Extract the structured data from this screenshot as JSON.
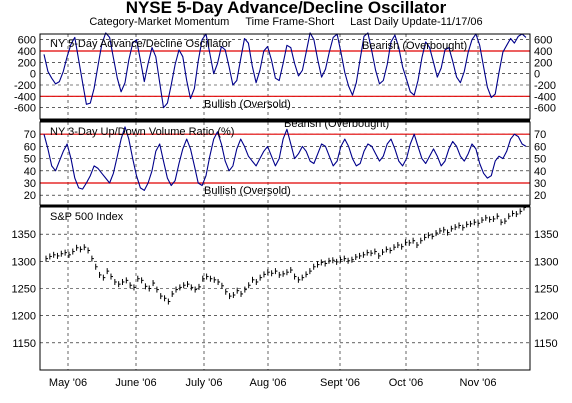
{
  "header": {
    "title": "NYSE 5-Day Advance/Decline Oscillator",
    "category": "Category-Market Momentum",
    "time_frame": "Time Frame-Short",
    "last_update": "Last Daily Update-11/17/06"
  },
  "colors": {
    "line": "#00008b",
    "reference": "#e00000",
    "grid": "#000000",
    "bar": "#000000"
  },
  "chart_data": [
    {
      "type": "line",
      "title": "NY 5-Day Advance/Decline Oscillator",
      "ylim": [
        -800,
        700
      ],
      "yticks": [
        600,
        400,
        200,
        0,
        -200,
        -400,
        -600
      ],
      "ytick_labels": [
        "600",
        "400",
        "200",
        "0",
        "-200",
        "-400",
        "-600"
      ],
      "reference_lines": [
        {
          "value": 400,
          "label": "Bearish (Overbought)"
        },
        {
          "value": -400,
          "label": "Bullish (Oversold)"
        }
      ],
      "series": [
        {
          "values": [
            340,
            40,
            -80,
            -180,
            -140,
            40,
            300,
            520,
            640,
            240,
            -160,
            -540,
            -520,
            -260,
            140,
            520,
            720,
            640,
            280,
            -80,
            -320,
            -160,
            240,
            540,
            600,
            240,
            -140,
            180,
            460,
            300,
            -160,
            -600,
            -520,
            -200,
            160,
            420,
            300,
            -120,
            -440,
            -260,
            220,
            600,
            700,
            360,
            0,
            180,
            480,
            420,
            120,
            -200,
            -120,
            260,
            620,
            540,
            140,
            -160,
            60,
            400,
            480,
            240,
            -80,
            -120,
            180,
            500,
            460,
            180,
            -40,
            60,
            380,
            720,
            600,
            240,
            -60,
            80,
            380,
            640,
            700,
            380,
            20,
            -220,
            -380,
            -160,
            260,
            660,
            720,
            400,
            60,
            -180,
            -120,
            160,
            560,
            680,
            460,
            120,
            -100,
            -320,
            -380,
            -120,
            280,
            560,
            460,
            200,
            -60,
            100,
            420,
            460,
            220,
            -60,
            -160,
            40,
            380,
            600,
            700,
            500,
            120,
            -240,
            -420,
            -360,
            20,
            380,
            500,
            620,
            540,
            660,
            700,
            640
          ]
        }
      ]
    },
    {
      "type": "line",
      "title": "NY 3-Day Up/Down Volume Ratio (%)",
      "ylim": [
        12,
        80
      ],
      "yticks": [
        70,
        60,
        50,
        40,
        30,
        20
      ],
      "ytick_labels": [
        "70",
        "60",
        "50",
        "40",
        "30",
        "20"
      ],
      "reference_lines": [
        {
          "value": 70,
          "label": "Bearish (Overbought)"
        },
        {
          "value": 30,
          "label": "Bullish (Oversold)"
        }
      ],
      "series": [
        {
          "values": [
            70,
            58,
            44,
            40,
            48,
            56,
            62,
            50,
            34,
            26,
            25,
            30,
            36,
            44,
            42,
            38,
            34,
            30,
            38,
            52,
            66,
            76,
            66,
            50,
            36,
            26,
            24,
            30,
            40,
            56,
            62,
            48,
            34,
            28,
            32,
            46,
            58,
            66,
            58,
            44,
            30,
            28,
            36,
            52,
            66,
            72,
            62,
            48,
            40,
            44,
            58,
            66,
            60,
            52,
            48,
            44,
            50,
            56,
            60,
            52,
            44,
            50,
            66,
            74,
            62,
            50,
            54,
            60,
            56,
            48,
            46,
            54,
            62,
            60,
            52,
            44,
            48,
            60,
            66,
            60,
            50,
            44,
            46,
            56,
            62,
            60,
            54,
            48,
            52,
            62,
            66,
            58,
            48,
            44,
            50,
            62,
            70,
            60,
            50,
            46,
            52,
            58,
            52,
            44,
            48,
            58,
            64,
            60,
            52,
            48,
            54,
            62,
            58,
            46,
            38,
            34,
            36,
            48,
            52,
            50,
            56,
            66,
            70,
            68,
            62,
            60
          ]
        }
      ]
    },
    {
      "type": "bar",
      "title": "S&P 500 Index",
      "ylim": [
        1100,
        1400
      ],
      "yticks": [
        1350,
        1300,
        1250,
        1200,
        1150
      ],
      "ytick_labels": [
        "1350",
        "1300",
        "1250",
        "1200",
        "1150"
      ],
      "x_tick_labels": [
        "May '06",
        "June '06",
        "July '06",
        "Aug '06",
        "Sept '06",
        "Oct '06",
        "Nov '06"
      ],
      "values": [
        1305,
        1309,
        1312,
        1310,
        1314,
        1316,
        1312,
        1318,
        1325,
        1322,
        1326,
        1320,
        1305,
        1290,
        1275,
        1270,
        1282,
        1272,
        1262,
        1258,
        1262,
        1265,
        1256,
        1252,
        1268,
        1265,
        1254,
        1250,
        1260,
        1248,
        1236,
        1232,
        1226,
        1240,
        1248,
        1252,
        1256,
        1258,
        1252,
        1248,
        1253,
        1268,
        1272,
        1268,
        1266,
        1262,
        1255,
        1244,
        1236,
        1238,
        1246,
        1240,
        1248,
        1256,
        1266,
        1262,
        1270,
        1276,
        1280,
        1278,
        1282,
        1275,
        1277,
        1280,
        1284,
        1272,
        1266,
        1270,
        1276,
        1282,
        1290,
        1294,
        1298,
        1296,
        1301,
        1302,
        1299,
        1303,
        1305,
        1301,
        1303,
        1308,
        1310,
        1312,
        1316,
        1315,
        1318,
        1310,
        1317,
        1322,
        1320,
        1326,
        1330,
        1327,
        1335,
        1334,
        1338,
        1330,
        1338,
        1344,
        1348,
        1346,
        1352,
        1356,
        1358,
        1353,
        1360,
        1363,
        1366,
        1362,
        1368,
        1369,
        1372,
        1370,
        1376,
        1380,
        1377,
        1378,
        1383,
        1372,
        1374,
        1383,
        1388,
        1387,
        1392,
        1399
      ]
    }
  ]
}
